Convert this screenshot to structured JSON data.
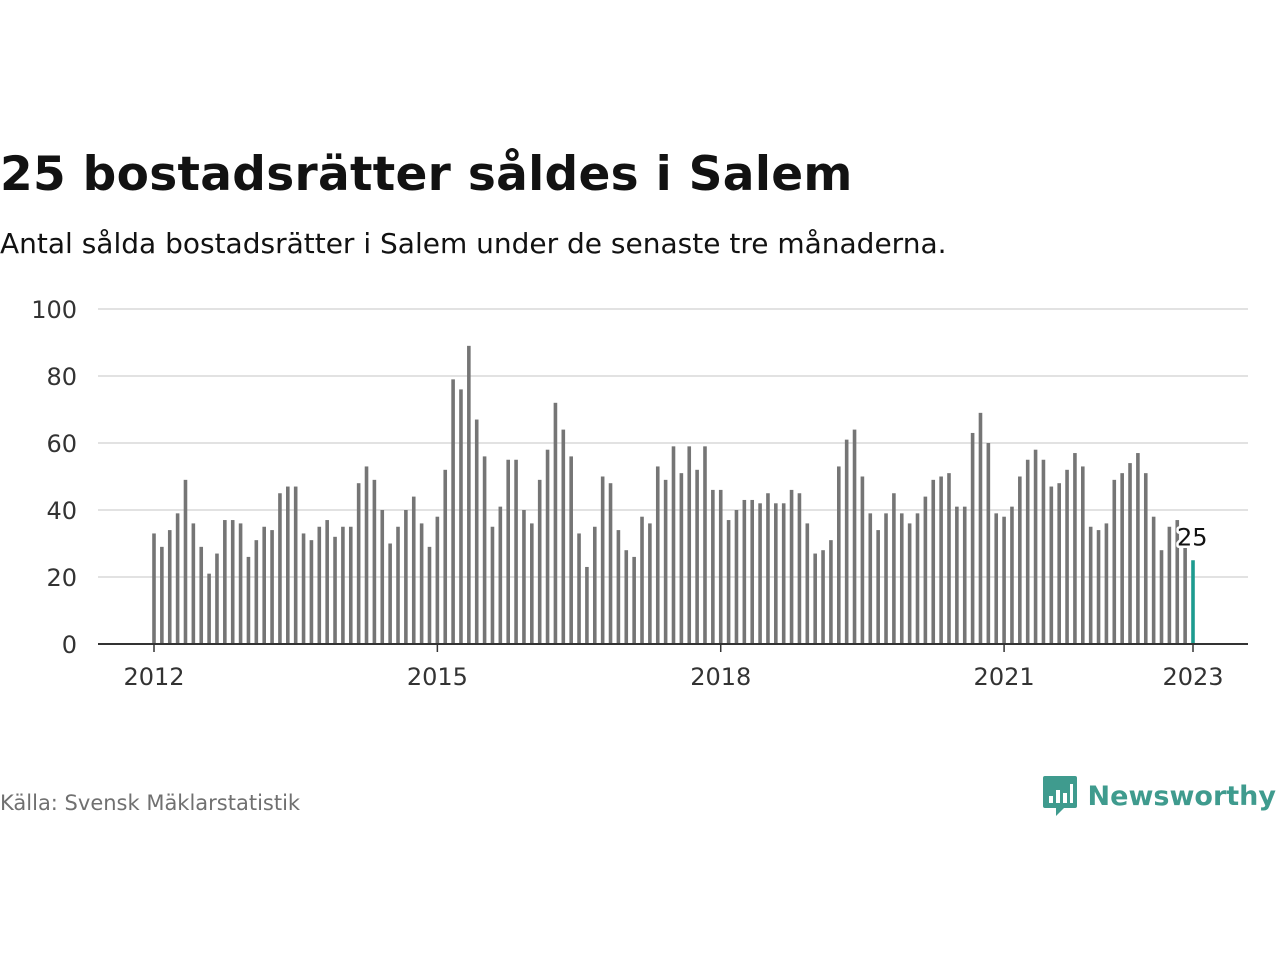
{
  "title": "25 bostadsrätter såldes i Salem",
  "subtitle": "Antal sålda bostadsrätter i Salem under de senaste tre månaderna.",
  "source": "Källa: Svensk Mäklarstatistik",
  "brand": {
    "name": "Newsworthy",
    "icon": "newsworthy-logo-icon"
  },
  "colors": {
    "bar": "#757575",
    "highlight": "#1d9b8f",
    "grid": "#d9d9d9",
    "axis": "#333333",
    "brand": "#3f9b8e"
  },
  "chart_data": {
    "type": "bar",
    "title": "25 bostadsrätter såldes i Salem",
    "subtitle": "Antal sålda bostadsrätter i Salem under de senaste tre månaderna.",
    "xlabel": "",
    "ylabel": "",
    "ylim": [
      0,
      100
    ],
    "yticks": [
      0,
      20,
      40,
      60,
      80,
      100
    ],
    "xticks": [
      "2012",
      "2015",
      "2018",
      "2021",
      "2023"
    ],
    "x_start": "2012-01",
    "x_end": "2023-01",
    "grid": true,
    "legend": "none",
    "values": [
      33,
      29,
      34,
      39,
      49,
      36,
      29,
      21,
      27,
      37,
      37,
      36,
      26,
      31,
      35,
      34,
      45,
      47,
      47,
      33,
      31,
      35,
      37,
      32,
      35,
      35,
      48,
      53,
      49,
      40,
      30,
      35,
      40,
      44,
      36,
      29,
      38,
      52,
      79,
      76,
      89,
      67,
      56,
      35,
      41,
      55,
      55,
      40,
      36,
      49,
      58,
      72,
      64,
      56,
      33,
      23,
      35,
      50,
      48,
      34,
      28,
      26,
      38,
      36,
      53,
      49,
      59,
      51,
      59,
      52,
      59,
      46,
      46,
      37,
      40,
      43,
      43,
      42,
      45,
      42,
      42,
      46,
      45,
      36,
      27,
      28,
      31,
      53,
      61,
      64,
      50,
      39,
      34,
      39,
      45,
      39,
      36,
      39,
      44,
      49,
      50,
      51,
      41,
      41,
      63,
      69,
      60,
      39,
      38,
      41,
      50,
      55,
      58,
      55,
      47,
      48,
      52,
      57,
      53,
      35,
      34,
      36,
      49,
      51,
      54,
      57,
      51,
      38,
      28,
      35,
      37,
      29,
      25
    ],
    "highlight": {
      "value": 25,
      "label": "25",
      "period": "2023-01"
    }
  }
}
